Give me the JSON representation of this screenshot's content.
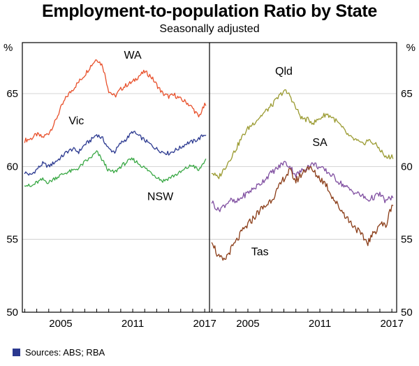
{
  "title": "Employment-to-population Ratio by State",
  "subtitle": "Seasonally adjusted",
  "footer": {
    "sources": "Sources: ABS; RBA"
  },
  "chart_data": {
    "type": "line",
    "title": "Employment-to-population Ratio by State",
    "subtitle": "Seasonally adjusted",
    "unit": "%",
    "ylim": [
      50,
      68.5
    ],
    "yticks": [
      50,
      55,
      60,
      65
    ],
    "xlim": [
      2001.8,
      2017.4
    ],
    "xticks_labeled": [
      2005,
      2011,
      2017
    ],
    "grid": true,
    "panels": [
      {
        "side": "left",
        "series": [
          {
            "name": "WA",
            "color": "#e8502b",
            "noise": 0.16,
            "label_at": {
              "x": 2011.0,
              "y": 67.4
            },
            "points": [
              [
                2002,
                61.8
              ],
              [
                2002.5,
                61.9
              ],
              [
                2003,
                62.2
              ],
              [
                2003.5,
                62.0
              ],
              [
                2004,
                62.3
              ],
              [
                2004.5,
                63.0
              ],
              [
                2005,
                64.0
              ],
              [
                2005.5,
                64.8
              ],
              [
                2006,
                65.3
              ],
              [
                2006.5,
                65.8
              ],
              [
                2007,
                66.3
              ],
              [
                2007.5,
                66.9
              ],
              [
                2008,
                67.4
              ],
              [
                2008.5,
                66.9
              ],
              [
                2009,
                65.2
              ],
              [
                2009.5,
                64.8
              ],
              [
                2010,
                65.3
              ],
              [
                2010.5,
                65.6
              ],
              [
                2011,
                65.8
              ],
              [
                2011.5,
                66.2
              ],
              [
                2012,
                66.5
              ],
              [
                2012.5,
                66.2
              ],
              [
                2013,
                65.6
              ],
              [
                2013.5,
                65.0
              ],
              [
                2014,
                64.8
              ],
              [
                2014.5,
                64.9
              ],
              [
                2015,
                64.6
              ],
              [
                2015.5,
                64.4
              ],
              [
                2016,
                64.0
              ],
              [
                2016.5,
                63.4
              ],
              [
                2017,
                64.2
              ]
            ]
          },
          {
            "name": "Vic",
            "color": "#2b3990",
            "noise": 0.14,
            "label_at": {
              "x": 2006.3,
              "y": 62.9
            },
            "points": [
              [
                2002,
                59.6
              ],
              [
                2002.5,
                59.4
              ],
              [
                2003,
                59.8
              ],
              [
                2003.5,
                60.2
              ],
              [
                2004,
                60.0
              ],
              [
                2004.5,
                60.3
              ],
              [
                2005,
                60.6
              ],
              [
                2005.5,
                61.0
              ],
              [
                2006,
                61.2
              ],
              [
                2006.5,
                61.0
              ],
              [
                2007,
                61.5
              ],
              [
                2007.5,
                61.8
              ],
              [
                2008,
                62.2
              ],
              [
                2008.5,
                61.9
              ],
              [
                2009,
                61.2
              ],
              [
                2009.5,
                61.0
              ],
              [
                2010,
                61.6
              ],
              [
                2010.5,
                61.9
              ],
              [
                2011,
                62.4
              ],
              [
                2011.5,
                62.1
              ],
              [
                2012,
                61.8
              ],
              [
                2012.5,
                61.5
              ],
              [
                2013,
                61.2
              ],
              [
                2013.5,
                61.0
              ],
              [
                2014,
                60.9
              ],
              [
                2014.5,
                61.1
              ],
              [
                2015,
                61.3
              ],
              [
                2015.5,
                61.6
              ],
              [
                2016,
                61.7
              ],
              [
                2016.5,
                61.9
              ],
              [
                2017,
                62.2
              ]
            ]
          },
          {
            "name": "NSW",
            "color": "#3aa845",
            "noise": 0.14,
            "label_at": {
              "x": 2013.3,
              "y": 57.7
            },
            "points": [
              [
                2002,
                58.8
              ],
              [
                2002.5,
                58.6
              ],
              [
                2003,
                58.9
              ],
              [
                2003.5,
                59.1
              ],
              [
                2004,
                58.9
              ],
              [
                2004.5,
                59.2
              ],
              [
                2005,
                59.4
              ],
              [
                2005.5,
                59.6
              ],
              [
                2006,
                59.7
              ],
              [
                2006.5,
                59.9
              ],
              [
                2007,
                60.3
              ],
              [
                2007.5,
                60.6
              ],
              [
                2008,
                61.0
              ],
              [
                2008.5,
                60.4
              ],
              [
                2009,
                59.7
              ],
              [
                2009.5,
                59.6
              ],
              [
                2010,
                60.0
              ],
              [
                2010.5,
                60.3
              ],
              [
                2011,
                60.5
              ],
              [
                2011.5,
                60.2
              ],
              [
                2012,
                59.9
              ],
              [
                2012.5,
                59.6
              ],
              [
                2013,
                59.3
              ],
              [
                2013.5,
                59.0
              ],
              [
                2014,
                59.2
              ],
              [
                2014.5,
                59.4
              ],
              [
                2015,
                59.6
              ],
              [
                2015.5,
                59.9
              ],
              [
                2016,
                60.1
              ],
              [
                2016.5,
                59.7
              ],
              [
                2017,
                60.4
              ]
            ]
          }
        ]
      },
      {
        "side": "right",
        "series": [
          {
            "name": "Qld",
            "color": "#9a9a30",
            "noise": 0.18,
            "label_at": {
              "x": 2008.0,
              "y": 66.3
            },
            "points": [
              [
                2002,
                59.6
              ],
              [
                2002.5,
                59.2
              ],
              [
                2003,
                59.8
              ],
              [
                2003.5,
                60.5
              ],
              [
                2004,
                61.2
              ],
              [
                2004.5,
                62.0
              ],
              [
                2005,
                62.6
              ],
              [
                2005.5,
                63.0
              ],
              [
                2006,
                63.4
              ],
              [
                2006.5,
                63.8
              ],
              [
                2007,
                64.2
              ],
              [
                2007.5,
                64.7
              ],
              [
                2008,
                65.2
              ],
              [
                2008.5,
                64.9
              ],
              [
                2009,
                64.0
              ],
              [
                2009.5,
                63.3
              ],
              [
                2010,
                63.2
              ],
              [
                2010.5,
                63.0
              ],
              [
                2011,
                63.3
              ],
              [
                2011.5,
                63.6
              ],
              [
                2012,
                63.4
              ],
              [
                2012.5,
                63.0
              ],
              [
                2013,
                62.5
              ],
              [
                2013.5,
                62.0
              ],
              [
                2014,
                61.8
              ],
              [
                2014.5,
                61.5
              ],
              [
                2015,
                61.8
              ],
              [
                2015.5,
                61.6
              ],
              [
                2016,
                61.2
              ],
              [
                2016.5,
                60.6
              ],
              [
                2017,
                60.7
              ]
            ]
          },
          {
            "name": "SA",
            "color": "#7f4ea0",
            "noise": 0.2,
            "label_at": {
              "x": 2011.0,
              "y": 61.4
            },
            "points": [
              [
                2002,
                57.6
              ],
              [
                2002.5,
                57.0
              ],
              [
                2003,
                57.3
              ],
              [
                2003.5,
                57.7
              ],
              [
                2004,
                57.5
              ],
              [
                2004.5,
                57.9
              ],
              [
                2005,
                58.2
              ],
              [
                2005.5,
                58.5
              ],
              [
                2006,
                58.8
              ],
              [
                2006.5,
                59.2
              ],
              [
                2007,
                59.6
              ],
              [
                2007.5,
                59.9
              ],
              [
                2008,
                60.3
              ],
              [
                2008.5,
                60.0
              ],
              [
                2009,
                59.4
              ],
              [
                2009.5,
                59.7
              ],
              [
                2010,
                60.0
              ],
              [
                2010.5,
                60.2
              ],
              [
                2011,
                59.9
              ],
              [
                2011.5,
                59.7
              ],
              [
                2012,
                59.4
              ],
              [
                2012.5,
                59.0
              ],
              [
                2013,
                58.7
              ],
              [
                2013.5,
                58.4
              ],
              [
                2014,
                58.2
              ],
              [
                2014.5,
                58.0
              ],
              [
                2015,
                57.7
              ],
              [
                2015.5,
                57.9
              ],
              [
                2016,
                58.1
              ],
              [
                2016.5,
                57.6
              ],
              [
                2017,
                57.9
              ]
            ]
          },
          {
            "name": "Tas",
            "color": "#8a3c17",
            "noise": 0.26,
            "label_at": {
              "x": 2006.0,
              "y": 53.9
            },
            "points": [
              [
                2002,
                55.0
              ],
              [
                2002.5,
                53.8
              ],
              [
                2003,
                53.5
              ],
              [
                2003.5,
                54.2
              ],
              [
                2004,
                54.8
              ],
              [
                2004.5,
                55.5
              ],
              [
                2005,
                56.0
              ],
              [
                2005.5,
                56.5
              ],
              [
                2006,
                57.0
              ],
              [
                2006.5,
                57.3
              ],
              [
                2007,
                57.8
              ],
              [
                2007.5,
                58.4
              ],
              [
                2008,
                59.2
              ],
              [
                2008.5,
                59.7
              ],
              [
                2009,
                59.0
              ],
              [
                2009.5,
                59.5
              ],
              [
                2010,
                60.0
              ],
              [
                2010.5,
                59.6
              ],
              [
                2011,
                59.2
              ],
              [
                2011.5,
                58.8
              ],
              [
                2012,
                58.0
              ],
              [
                2012.5,
                57.3
              ],
              [
                2013,
                56.8
              ],
              [
                2013.5,
                56.2
              ],
              [
                2014,
                55.8
              ],
              [
                2014.5,
                55.2
              ],
              [
                2015,
                54.8
              ],
              [
                2015.5,
                55.4
              ],
              [
                2016,
                56.1
              ],
              [
                2016.5,
                55.9
              ],
              [
                2017,
                57.4
              ]
            ]
          }
        ]
      }
    ]
  }
}
